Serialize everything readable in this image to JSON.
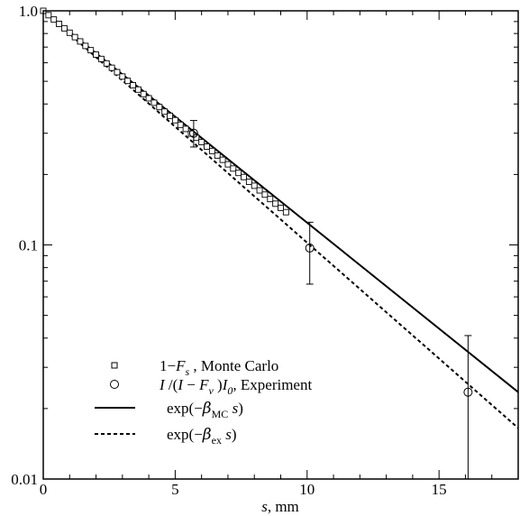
{
  "chart_data": {
    "type": "scatter",
    "xlabel": {
      "var": "s",
      "unit": ", mm"
    },
    "xlim": [
      0,
      18
    ],
    "ylim": [
      0.01,
      1.0
    ],
    "yscale": "log",
    "x_ticks": [
      "0",
      "5",
      "10",
      "15"
    ],
    "y_ticks": [
      "0.01",
      "0.1",
      "1.0"
    ],
    "legend_position": "bottom-left",
    "series": [
      {
        "name": "1−F_s , Monte Carlo",
        "legend": {
          "parts": [
            "1−",
            "F",
            "s",
            " , Monte Carlo"
          ]
        },
        "style": "square-markers",
        "x": [
          0.0,
          0.2,
          0.4,
          0.6,
          0.8,
          1.0,
          1.2,
          1.4,
          1.6,
          1.8,
          2.0,
          2.2,
          2.4,
          2.6,
          2.8,
          3.0,
          3.2,
          3.4,
          3.6,
          3.8,
          4.0,
          4.2,
          4.4,
          4.6,
          4.8,
          5.0,
          5.2,
          5.4,
          5.6,
          5.8,
          6.0,
          6.2,
          6.4,
          6.6,
          6.8,
          7.0,
          7.2,
          7.4,
          7.6,
          7.8,
          8.0,
          8.2,
          8.4,
          8.6,
          8.8,
          9.0,
          9.2
        ],
        "y": [
          1.0,
          0.958,
          0.918,
          0.879,
          0.842,
          0.806,
          0.772,
          0.74,
          0.708,
          0.679,
          0.65,
          0.623,
          0.596,
          0.571,
          0.547,
          0.524,
          0.502,
          0.481,
          0.461,
          0.441,
          0.423,
          0.405,
          0.388,
          0.371,
          0.356,
          0.341,
          0.326,
          0.313,
          0.299,
          0.287,
          0.275,
          0.263,
          0.252,
          0.241,
          0.231,
          0.221,
          0.212,
          0.203,
          0.195,
          0.186,
          0.179,
          0.171,
          0.164,
          0.157,
          0.15,
          0.144,
          0.138
        ]
      },
      {
        "name": "I /(I − F_v )I_0, Experiment",
        "legend": {
          "parts": [
            "I",
            " /(",
            "I",
            " − ",
            "F",
            "v",
            " )",
            "I",
            "0",
            ", Experiment"
          ]
        },
        "style": "circle-markers-with-error-bars",
        "x": [
          5.7,
          10.1,
          16.1
        ],
        "y": [
          0.3,
          0.097,
          0.0235
        ],
        "y_err_low": [
          0.262,
          0.068,
          0.01
        ],
        "y_err_high": [
          0.34,
          0.125,
          0.041
        ]
      },
      {
        "name": "exp(−β_MC s)",
        "legend": {
          "parts": [
            "exp(−",
            "β",
            "MC",
            " ",
            "s",
            ")"
          ]
        },
        "style": "solid-line",
        "x": [
          0,
          18
        ],
        "y": [
          1.0,
          0.0235
        ]
      },
      {
        "name": "exp(−β_ex s)",
        "legend": {
          "parts": [
            "exp(−",
            "β",
            "ex",
            " ",
            "s",
            ")"
          ]
        },
        "style": "dashed-line",
        "x": [
          0,
          18
        ],
        "y": [
          1.0,
          0.0165
        ]
      }
    ]
  }
}
